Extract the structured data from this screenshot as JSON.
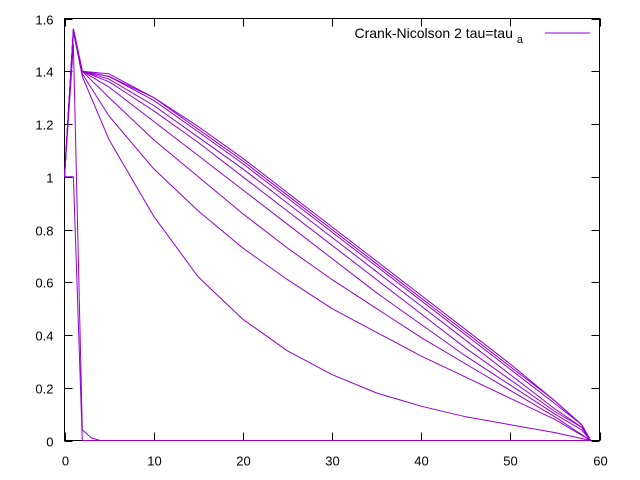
{
  "chart_data": {
    "type": "line",
    "title": "",
    "xlabel": "",
    "ylabel": "",
    "xlim": [
      0,
      60
    ],
    "ylim": [
      0,
      1.6
    ],
    "x_ticks": [
      0,
      10,
      20,
      30,
      40,
      50,
      60
    ],
    "y_ticks": [
      0,
      0.2,
      0.4,
      0.6,
      0.8,
      1,
      1.2,
      1.4,
      1.6
    ],
    "x_tick_labels": [
      "0",
      "10",
      "20",
      "30",
      "40",
      "50",
      "60"
    ],
    "y_tick_labels": [
      "0",
      "0.2",
      "0.4",
      "0.6",
      "0.8",
      "1",
      "1.2",
      "1.4",
      "1.6"
    ],
    "grid": false,
    "legend": {
      "position": "top-right",
      "label": "Crank-Nicolson 2 tau=tau",
      "label_subscript": "a"
    },
    "line_color": "#9400d3",
    "series": [
      {
        "x": [
          0,
          1,
          2,
          3,
          4,
          59
        ],
        "y": [
          1.0,
          1.0,
          0.0,
          0.0,
          0.0,
          0.0
        ]
      },
      {
        "x": [
          0,
          1,
          2,
          3,
          4,
          59
        ],
        "y": [
          1.0,
          1.5,
          0.04,
          0.01,
          0.0,
          0.0
        ]
      },
      {
        "x": [
          0,
          1,
          2,
          5,
          10,
          15,
          20,
          25,
          30,
          35,
          40,
          45,
          50,
          55,
          59
        ],
        "y": [
          1.0,
          1.55,
          1.38,
          1.14,
          0.85,
          0.62,
          0.46,
          0.34,
          0.25,
          0.18,
          0.13,
          0.09,
          0.06,
          0.03,
          0.0
        ]
      },
      {
        "x": [
          0,
          1,
          2,
          5,
          10,
          15,
          20,
          25,
          30,
          35,
          40,
          45,
          50,
          55,
          59
        ],
        "y": [
          1.0,
          1.55,
          1.39,
          1.23,
          1.03,
          0.87,
          0.73,
          0.61,
          0.5,
          0.41,
          0.32,
          0.24,
          0.16,
          0.08,
          0.0
        ]
      },
      {
        "x": [
          0,
          1,
          2,
          5,
          10,
          15,
          20,
          25,
          30,
          35,
          40,
          45,
          50,
          55,
          59
        ],
        "y": [
          1.0,
          1.55,
          1.4,
          1.3,
          1.14,
          1.0,
          0.86,
          0.73,
          0.61,
          0.5,
          0.39,
          0.29,
          0.19,
          0.09,
          0.0
        ]
      },
      {
        "x": [
          0,
          1,
          2,
          5,
          10,
          15,
          20,
          25,
          30,
          35,
          40,
          45,
          50,
          55,
          58,
          59
        ],
        "y": [
          1.0,
          1.55,
          1.4,
          1.34,
          1.21,
          1.08,
          0.95,
          0.82,
          0.69,
          0.56,
          0.44,
          0.32,
          0.21,
          0.1,
          0.04,
          0.0
        ]
      },
      {
        "x": [
          0,
          1,
          2,
          5,
          10,
          15,
          20,
          25,
          30,
          35,
          40,
          45,
          50,
          55,
          58,
          59
        ],
        "y": [
          1.0,
          1.55,
          1.4,
          1.36,
          1.25,
          1.13,
          1.0,
          0.87,
          0.74,
          0.61,
          0.48,
          0.35,
          0.23,
          0.11,
          0.05,
          0.0
        ]
      },
      {
        "x": [
          0,
          1,
          2,
          5,
          10,
          15,
          20,
          25,
          30,
          35,
          40,
          45,
          50,
          55,
          58,
          59
        ],
        "y": [
          1.0,
          1.56,
          1.4,
          1.37,
          1.27,
          1.15,
          1.03,
          0.9,
          0.77,
          0.64,
          0.51,
          0.38,
          0.25,
          0.12,
          0.05,
          0.0
        ]
      },
      {
        "x": [
          0,
          1,
          2,
          5,
          10,
          15,
          20,
          25,
          30,
          35,
          40,
          45,
          50,
          55,
          58,
          59
        ],
        "y": [
          1.0,
          1.56,
          1.4,
          1.38,
          1.29,
          1.17,
          1.05,
          0.92,
          0.79,
          0.66,
          0.53,
          0.4,
          0.27,
          0.14,
          0.06,
          0.0
        ]
      },
      {
        "x": [
          0,
          1,
          2,
          5,
          10,
          15,
          20,
          25,
          30,
          35,
          40,
          45,
          50,
          55,
          58,
          59
        ],
        "y": [
          1.0,
          1.56,
          1.4,
          1.38,
          1.3,
          1.18,
          1.06,
          0.93,
          0.8,
          0.67,
          0.54,
          0.41,
          0.28,
          0.15,
          0.06,
          0.0
        ]
      },
      {
        "x": [
          0,
          1,
          2,
          5,
          10,
          15,
          20,
          25,
          30,
          35,
          40,
          45,
          50,
          55,
          58,
          59
        ],
        "y": [
          1.0,
          1.56,
          1.4,
          1.39,
          1.3,
          1.19,
          1.07,
          0.94,
          0.81,
          0.68,
          0.55,
          0.42,
          0.29,
          0.15,
          0.06,
          0.0
        ]
      }
    ]
  }
}
